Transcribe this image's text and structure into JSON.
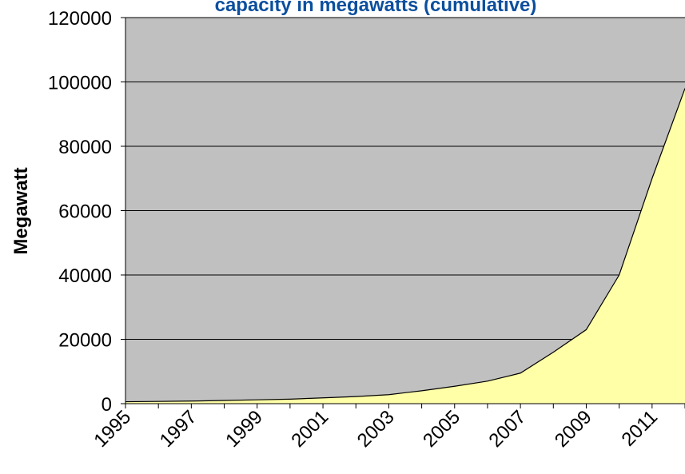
{
  "chart_data": {
    "type": "area",
    "title": "capacity in megawatts (cumulative)",
    "y_label": "Megawatt",
    "categories": [
      "1995",
      null,
      "1997",
      null,
      "1999",
      null,
      "2001",
      null,
      "2003",
      null,
      "2005",
      null,
      "2007",
      null,
      "2009",
      null,
      "2011",
      null
    ],
    "values": [
      600,
      700,
      800,
      1000,
      1200,
      1400,
      1800,
      2200,
      2800,
      4000,
      5400,
      7000,
      9500,
      16000,
      23000,
      40000,
      70000,
      98000
    ],
    "color": "#ffffa8",
    "background": "#c0c0c0",
    "ylim": [
      0,
      120000
    ],
    "yticks": [
      0,
      20000,
      40000,
      60000,
      80000,
      100000,
      120000
    ],
    "grid": true
  }
}
